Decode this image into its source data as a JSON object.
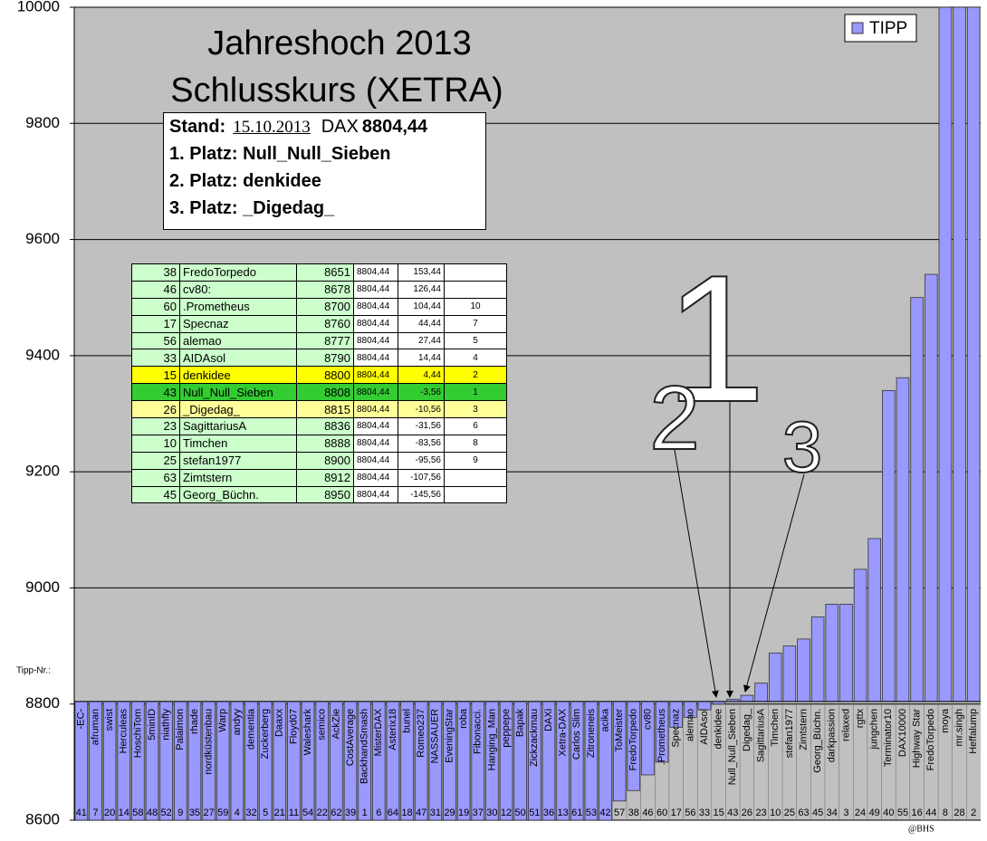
{
  "chart_data": {
    "type": "bar",
    "title": "Jahreshoch 2013",
    "subtitle": "Schlusskurs (XETRA)",
    "categories": [
      "-EC-",
      "afruman",
      "swist",
      "Herculeas",
      "HoschiTom",
      "5minID",
      "niathfly",
      "Palaimon",
      "rhade",
      "nordküstenbau",
      "Warp",
      "andyy",
      "dementia",
      "Zuckerberg",
      "Daaxx",
      "Floyd07",
      "Waleshark",
      "semico",
      "AckZie",
      "CostAverage",
      "BackhandSmash",
      "MisterDAX",
      "Asterix18",
      "bunel",
      "Romeo237",
      "NASSAUER",
      "EveningStar",
      "roba",
      "Fibonacci.",
      "Hanging_Man",
      "peppepe",
      "Bapak",
      "Zickzackmau",
      "DAXi",
      "Xetra-DAX",
      "Carlos Slim",
      "Zitroneneis",
      "acika",
      "ToMeister",
      "FredoTorpedo",
      "cv80",
      ".Prometheus",
      "Specnaz",
      "alemao",
      "AIDAsol",
      "denkidee",
      "Null_Null_Sieben",
      "Digedag_",
      "SagittariusA",
      "Timchen",
      "stefan1977",
      "Zimtstern",
      "Georg_Büchn.",
      "darkpassion",
      "relaxed",
      "rgttx",
      "jungchen",
      "Terminator10",
      "DAX10000",
      "Highway Star",
      "FredoTorpedo",
      "moya",
      "mr.singh",
      "Heffalump"
    ],
    "tipp_nr_label": "Tipp-Nr.:",
    "tipp_nr": [
      41,
      7,
      20,
      14,
      58,
      48,
      52,
      9,
      35,
      27,
      59,
      4,
      32,
      5,
      21,
      11,
      54,
      22,
      62,
      39,
      1,
      6,
      64,
      18,
      47,
      31,
      29,
      19,
      37,
      30,
      12,
      50,
      51,
      36,
      13,
      61,
      53,
      42,
      57,
      38,
      46,
      60,
      17,
      56,
      33,
      15,
      43,
      26,
      23,
      10,
      25,
      63,
      45,
      34,
      3,
      24,
      49,
      40,
      55,
      16,
      44,
      8,
      28,
      2
    ],
    "series": [
      {
        "name": "TIPP",
        "color": "#9999ff",
        "values": [
          8600,
          8600,
          8600,
          8600,
          8600,
          8600,
          8600,
          8600,
          8600,
          8600,
          8600,
          8600,
          8600,
          8600,
          8600,
          8600,
          8600,
          8600,
          8600,
          8600,
          8600,
          8600,
          8600,
          8600,
          8600,
          8600,
          8600,
          8600,
          8600,
          8600,
          8600,
          8600,
          8600,
          8600,
          8600,
          8600,
          8600,
          8600,
          8633,
          8651,
          8678,
          8700,
          8760,
          8777,
          8790,
          8800,
          8808,
          8815,
          8836,
          8888,
          8900,
          8912,
          8950,
          8972,
          8972,
          9032,
          9085,
          9340,
          9362,
          9500,
          9540,
          10000,
          10000,
          10000
        ]
      }
    ],
    "baseline": 8804.44,
    "ylim": [
      8600,
      10000
    ],
    "yticks": [
      8600,
      8800,
      9000,
      9200,
      9400,
      9600,
      9800,
      10000
    ],
    "grid": true,
    "legend": "top-right",
    "annotations": [
      "1",
      "2",
      "3"
    ],
    "credit": "@BHS"
  },
  "info": {
    "stand_label": "Stand:",
    "date": "15.10.2013",
    "dax_label": "DAX",
    "dax": "8804,44",
    "places": [
      "1. Platz: Null_Null_Sieben",
      "2. Platz: denkidee",
      "3. Platz: _Digedag_"
    ]
  },
  "table": {
    "rows": [
      [
        38,
        "FredoTorpedo",
        8651,
        "8804,44",
        "153,44"
      ],
      [
        46,
        "cv80:",
        8678,
        "8804,44",
        "126,44"
      ],
      [
        60,
        ".Prometheus",
        8700,
        "8804,44",
        "104,44",
        10
      ],
      [
        17,
        "Specnaz",
        8760,
        "8804,44",
        "44,44",
        7
      ],
      [
        56,
        "alemao",
        8777,
        "8804,44",
        "27,44",
        5
      ],
      [
        33,
        "AIDAsol",
        8790,
        "8804,44",
        "14,44",
        4
      ],
      [
        15,
        "denkidee",
        8800,
        "8804,44",
        "4,44",
        2
      ],
      [
        43,
        "Null_Null_Sieben",
        8808,
        "8804,44",
        "-3,56",
        1
      ],
      [
        26,
        "_Digedag_",
        8815,
        "8804,44",
        "-10,56",
        3
      ],
      [
        23,
        "SagittariusA",
        8836,
        "8804,44",
        "-31,56",
        6
      ],
      [
        10,
        "Timchen",
        8888,
        "8804,44",
        "-83,56",
        8
      ],
      [
        25,
        "stefan1977",
        8900,
        "8804,44",
        "-95,56",
        9
      ],
      [
        63,
        "Zimtstern",
        8912,
        "8804,44",
        "-107,56"
      ],
      [
        45,
        "Georg_Büchn.",
        8950,
        "8804,44",
        "-145,56"
      ]
    ]
  }
}
